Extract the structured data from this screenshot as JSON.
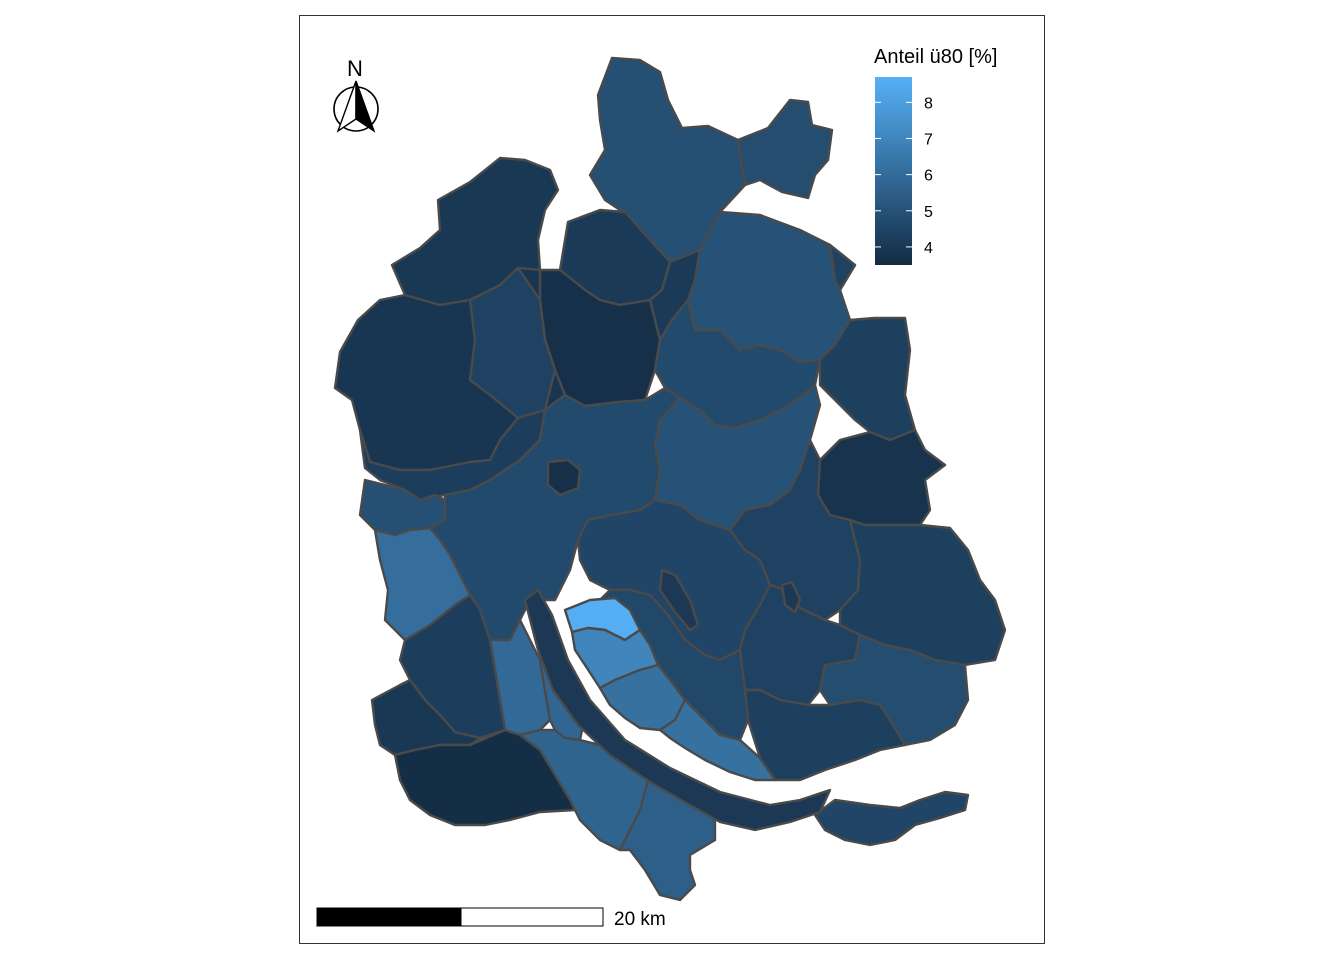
{
  "legend": {
    "title": "Anteil ü80 [%]",
    "ticks": [
      {
        "value": 8,
        "label": "8"
      },
      {
        "value": 7,
        "label": "7"
      },
      {
        "value": 6,
        "label": "6"
      },
      {
        "value": 5,
        "label": "5"
      },
      {
        "value": 4,
        "label": "4"
      }
    ],
    "range": [
      3.5,
      8.7
    ],
    "color_low": "#132b43",
    "color_high": "#56b1f7"
  },
  "north_arrow": {
    "letter": "N"
  },
  "scale_bar": {
    "label": "20 km"
  },
  "colors": {
    "border": "#4a4a4a",
    "frame": "#333333",
    "lake": "#1c3854"
  },
  "regions": [
    {
      "name": "north-tip",
      "value": 4.9
    },
    {
      "name": "north-east-lobe",
      "value": 4.8
    },
    {
      "name": "north-west-block",
      "value": 4.0
    },
    {
      "name": "north-centre-left",
      "value": 4.1
    },
    {
      "name": "north-centre-right",
      "value": 4.1
    },
    {
      "name": "north-centre-column",
      "value": 3.7
    },
    {
      "name": "west-large",
      "value": 3.9
    },
    {
      "name": "west-middle",
      "value": 4.4
    },
    {
      "name": "north-east-large",
      "value": 5.0
    },
    {
      "name": "centre-north",
      "value": 4.7
    },
    {
      "name": "east-edge-north",
      "value": 4.3
    },
    {
      "name": "west-lower",
      "value": 4.2
    },
    {
      "name": "west-small-lighter",
      "value": 4.9
    },
    {
      "name": "centre-main",
      "value": 4.7
    },
    {
      "name": "centre-east",
      "value": 5.0
    },
    {
      "name": "east-dark-block",
      "value": 3.8
    },
    {
      "name": "far-west-light",
      "value": 6.1
    },
    {
      "name": "east-lower",
      "value": 4.4
    },
    {
      "name": "south-east-large",
      "value": 4.3
    },
    {
      "name": "centre-south",
      "value": 4.5
    },
    {
      "name": "centre-south-east",
      "value": 4.4
    },
    {
      "name": "south-centre",
      "value": 4.6
    },
    {
      "name": "south-east-small",
      "value": 4.8
    },
    {
      "name": "lake-shore-light",
      "value": 8.6
    },
    {
      "name": "lake-shore-medium",
      "value": 7.0
    },
    {
      "name": "lake-shore-lower",
      "value": 6.2
    },
    {
      "name": "lake-shore-band",
      "value": 6.2
    },
    {
      "name": "west-shore-a",
      "value": 5.9
    },
    {
      "name": "west-shore-b",
      "value": 5.8
    },
    {
      "name": "south-west-a",
      "value": 4.2
    },
    {
      "name": "south-west-b",
      "value": 4.0
    },
    {
      "name": "south-west-bottom",
      "value": 3.6
    },
    {
      "name": "south-shore-a",
      "value": 5.7
    },
    {
      "name": "south-shore-b",
      "value": 5.5
    },
    {
      "name": "east-shore-lower",
      "value": 4.3
    },
    {
      "name": "far-south-east",
      "value": 4.5
    },
    {
      "name": "south-east-tip",
      "value": 4.4
    },
    {
      "name": "small-enclave",
      "value": 3.7
    }
  ]
}
